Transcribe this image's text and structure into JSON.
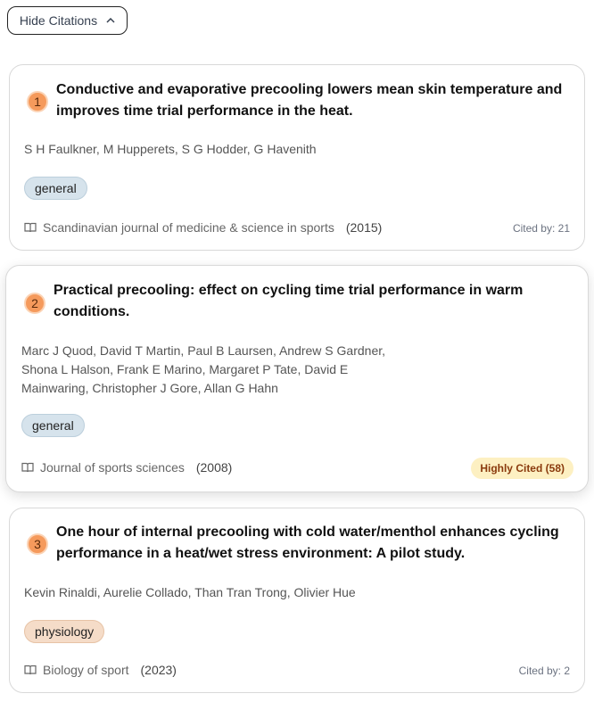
{
  "toggle": {
    "label": "Hide Citations",
    "icon": "chevron-up-icon"
  },
  "citations": [
    {
      "number": "1",
      "title": "Conductive and evaporative precooling lowers mean skin temperature and improves time trial performance in the heat.",
      "authors": "S H Faulkner, M Hupperets, S G Hodder, G Havenith",
      "tag": "general",
      "journal": "Scandinavian journal of medicine & science in sports",
      "year": "(2015)",
      "citation_label": "Cited by: 21"
    },
    {
      "number": "2",
      "title": "Practical precooling: effect on cycling time trial performance in warm conditions.",
      "authors": "Marc J Quod, David T Martin, Paul B Laursen, Andrew S Gardner, Shona L Halson, Frank E Marino, Margaret P Tate, David E Mainwaring, Christopher J Gore, Allan G Hahn",
      "tag": "general",
      "journal": "Journal of sports sciences",
      "year": "(2008)",
      "citation_label": "Highly Cited (58)"
    },
    {
      "number": "3",
      "title": "One hour of internal precooling with cold water/menthol enhances cycling performance in a heat/wet stress environment: A pilot study.",
      "authors": "Kevin Rinaldi, Aurelie Collado, Than Tran Trong, Olivier Hue",
      "tag": "physiology",
      "journal": "Biology of sport",
      "year": "(2023)",
      "citation_label": "Cited by: 2"
    }
  ],
  "colors": {
    "number_badge": "#f59a5c",
    "tag_general": "#d6e3ec",
    "tag_physiology": "#f5dcc8",
    "highly_cited_bg": "#fdf0c2",
    "highly_cited_text": "#8a3a0d"
  }
}
